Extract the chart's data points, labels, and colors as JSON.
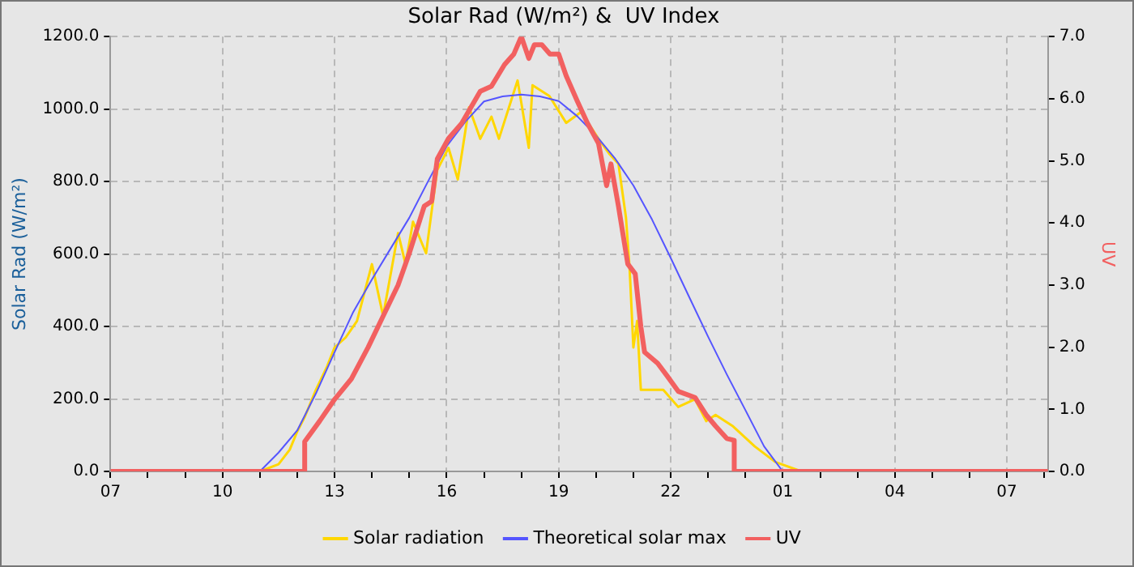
{
  "chart_data": {
    "type": "line",
    "title": "Solar Rad (W/m²) &  UV Index",
    "ylabel": "Solar Rad (W/m²)",
    "y2label": "UV",
    "xlim": [
      "--01-01T07:00",
      "--01-02T08:06"
    ],
    "xticks": [
      {
        "value": "--01-01T07:00",
        "label": "07"
      },
      {
        "value": "--01-01T08:00",
        "label": null
      },
      {
        "value": "--01-01T09:00",
        "label": null
      },
      {
        "value": "--01-01T10:00",
        "label": "10"
      },
      {
        "value": "--01-01T11:00",
        "label": null
      },
      {
        "value": "--01-01T12:00",
        "label": null
      },
      {
        "value": "--01-01T13:00",
        "label": "13"
      },
      {
        "value": "--01-01T14:00",
        "label": null
      },
      {
        "value": "--01-01T15:00",
        "label": null
      },
      {
        "value": "--01-01T16:00",
        "label": "16"
      },
      {
        "value": "--01-01T17:00",
        "label": null
      },
      {
        "value": "--01-01T18:00",
        "label": null
      },
      {
        "value": "--01-01T19:00",
        "label": "19"
      },
      {
        "value": "--01-01T20:00",
        "label": null
      },
      {
        "value": "--01-01T21:00",
        "label": null
      },
      {
        "value": "--01-01T22:00",
        "label": "22"
      },
      {
        "value": "--01-01T23:00",
        "label": null
      },
      {
        "value": "--01-02T00:00",
        "label": null
      },
      {
        "value": "--01-02T01:00",
        "label": "01"
      },
      {
        "value": "--01-02T02:00",
        "label": null
      },
      {
        "value": "--01-02T03:00",
        "label": null
      },
      {
        "value": "--01-02T04:00",
        "label": "04"
      },
      {
        "value": "--01-02T05:00",
        "label": null
      },
      {
        "value": "--01-02T06:00",
        "label": null
      },
      {
        "value": "--01-02T07:00",
        "label": "07"
      },
      {
        "value": "--01-02T08:00",
        "label": null
      }
    ],
    "ylim": [
      0,
      1200
    ],
    "yticks": [
      {
        "value": 0,
        "label": "0.0"
      },
      {
        "value": 200,
        "label": "200.0"
      },
      {
        "value": 400,
        "label": "400.0"
      },
      {
        "value": 600,
        "label": "600.0"
      },
      {
        "value": 800,
        "label": "800.0"
      },
      {
        "value": 1000,
        "label": "1000.0"
      },
      {
        "value": 1200,
        "label": "1200.0"
      }
    ],
    "y2lim": [
      0,
      7
    ],
    "y2ticks": [
      {
        "value": 0,
        "label": "0.0"
      },
      {
        "value": 1,
        "label": "1.0"
      },
      {
        "value": 2,
        "label": "2.0"
      },
      {
        "value": 3,
        "label": "3.0"
      },
      {
        "value": 4,
        "label": "4.0"
      },
      {
        "value": 5,
        "label": "5.0"
      },
      {
        "value": 6,
        "label": "6.0"
      },
      {
        "value": 7,
        "label": "7.0"
      }
    ],
    "grid": true,
    "legend": "bottom",
    "marker": "none",
    "line_style": "solid",
    "series": [
      {
        "name": "Solar radiation",
        "color": "#ffd700",
        "x": [
          "--01-01T07:00",
          "--01-01T11:00",
          "--01-01T11:30",
          "--01-01T11:48",
          "--01-01T12:00",
          "--01-01T12:12",
          "--01-01T12:30",
          "--01-01T12:48",
          "--01-01T13:00",
          "--01-01T13:18",
          "--01-01T13:36",
          "--01-01T14:00",
          "--01-01T14:18",
          "--01-01T14:42",
          "--01-01T14:54",
          "--01-01T15:06",
          "--01-01T15:27",
          "--01-01T15:36",
          "--01-01T15:45",
          "--01-01T16:03",
          "--01-01T16:18",
          "--01-01T16:36",
          "--01-01T16:54",
          "--01-01T17:12",
          "--01-01T17:24",
          "--01-01T17:54",
          "--01-01T18:12",
          "--01-01T18:18",
          "--01-01T18:45",
          "--01-01T19:12",
          "--01-01T19:36",
          "--01-01T20:04",
          "--01-01T20:22",
          "--01-01T20:36",
          "--01-01T20:48",
          "--01-01T20:54",
          "--01-01T21:00",
          "--01-01T21:06",
          "--01-01T21:12",
          "--01-01T21:27",
          "--01-01T21:48",
          "--01-01T22:12",
          "--01-01T22:39",
          "--01-01T22:57",
          "--01-01T23:12",
          "--01-01T23:39",
          "--01-02T00:15",
          "--01-02T00:48",
          "--01-02T01:30",
          "--01-02T08:06"
        ],
        "values": [
          0,
          0,
          20,
          60,
          110,
          150,
          225,
          290,
          342,
          370,
          415,
          572,
          429,
          658,
          572,
          689,
          602,
          719,
          832,
          893,
          806,
          1005,
          918,
          979,
          918,
          1079,
          893,
          1066,
          1036,
          962,
          992,
          918,
          875,
          849,
          702,
          559,
          342,
          415,
          225,
          225,
          225,
          178,
          199,
          139,
          156,
          126,
          69,
          26,
          0,
          0
        ]
      },
      {
        "name": "Theoretical solar max",
        "color": "#5555ff",
        "x": [
          "--01-01T07:00",
          "--01-01T11:00",
          "--01-01T11:30",
          "--01-01T12:00",
          "--01-01T12:30",
          "--01-01T13:00",
          "--01-01T13:30",
          "--01-01T14:00",
          "--01-01T14:30",
          "--01-01T15:00",
          "--01-01T15:30",
          "--01-01T16:00",
          "--01-01T16:30",
          "--01-01T17:00",
          "--01-01T17:30",
          "--01-01T18:00",
          "--01-01T18:30",
          "--01-01T19:00",
          "--01-01T19:30",
          "--01-01T20:00",
          "--01-01T20:30",
          "--01-01T21:00",
          "--01-01T21:30",
          "--01-01T22:00",
          "--01-01T22:30",
          "--01-01T23:00",
          "--01-01T23:30",
          "--01-02T00:00",
          "--01-02T00:30",
          "--01-02T01:00",
          "--01-02T08:06"
        ],
        "values": [
          0,
          0,
          52,
          113,
          215,
          329,
          440,
          530,
          615,
          700,
          800,
          897,
          965,
          1021,
          1035,
          1040,
          1035,
          1022,
          980,
          927,
          865,
          789,
          695,
          589,
          480,
          372,
          268,
          169,
          69,
          0,
          0
        ]
      },
      {
        "name": "UV",
        "color": "#f26060",
        "axis": "y2",
        "x": [
          "--01-01T07:00",
          "--01-01T12:12",
          "--01-01T12:12",
          "--01-01T12:36",
          "--01-01T13:00",
          "--01-01T13:27",
          "--01-01T13:54",
          "--01-01T14:18",
          "--01-01T14:42",
          "--01-01T15:00",
          "--01-01T15:24",
          "--01-01T15:36",
          "--01-01T15:45",
          "--01-01T16:03",
          "--01-01T16:24",
          "--01-01T16:54",
          "--01-01T17:12",
          "--01-01T17:33",
          "--01-01T17:48",
          "--01-01T18:00",
          "--01-01T18:12",
          "--01-01T18:21",
          "--01-01T18:33",
          "--01-01T18:46",
          "--01-01T19:00",
          "--01-01T19:12",
          "--01-01T19:30",
          "--01-01T19:46",
          "--01-01T20:04",
          "--01-01T20:17",
          "--01-01T20:24",
          "--01-01T20:36",
          "--01-01T20:51",
          "--01-01T21:03",
          "--01-01T21:12",
          "--01-01T21:18",
          "--01-01T21:39",
          "--01-01T21:54",
          "--01-01T22:12",
          "--01-01T22:39",
          "--01-01T22:57",
          "--01-01T23:12",
          "--01-01T23:30",
          "--01-01T23:42",
          "--01-01T23:42",
          "--01-02T08:06"
        ],
        "values": [
          0,
          0,
          0.48,
          0.81,
          1.16,
          1.49,
          2.0,
          2.5,
          3.0,
          3.51,
          4.27,
          4.35,
          5.03,
          5.36,
          5.6,
          6.12,
          6.2,
          6.55,
          6.72,
          7.0,
          6.65,
          6.87,
          6.87,
          6.72,
          6.72,
          6.37,
          5.96,
          5.61,
          5.28,
          4.6,
          4.95,
          4.27,
          3.34,
          3.18,
          2.33,
          1.92,
          1.74,
          1.54,
          1.29,
          1.19,
          0.91,
          0.73,
          0.53,
          0.5,
          0,
          0
        ]
      }
    ]
  }
}
